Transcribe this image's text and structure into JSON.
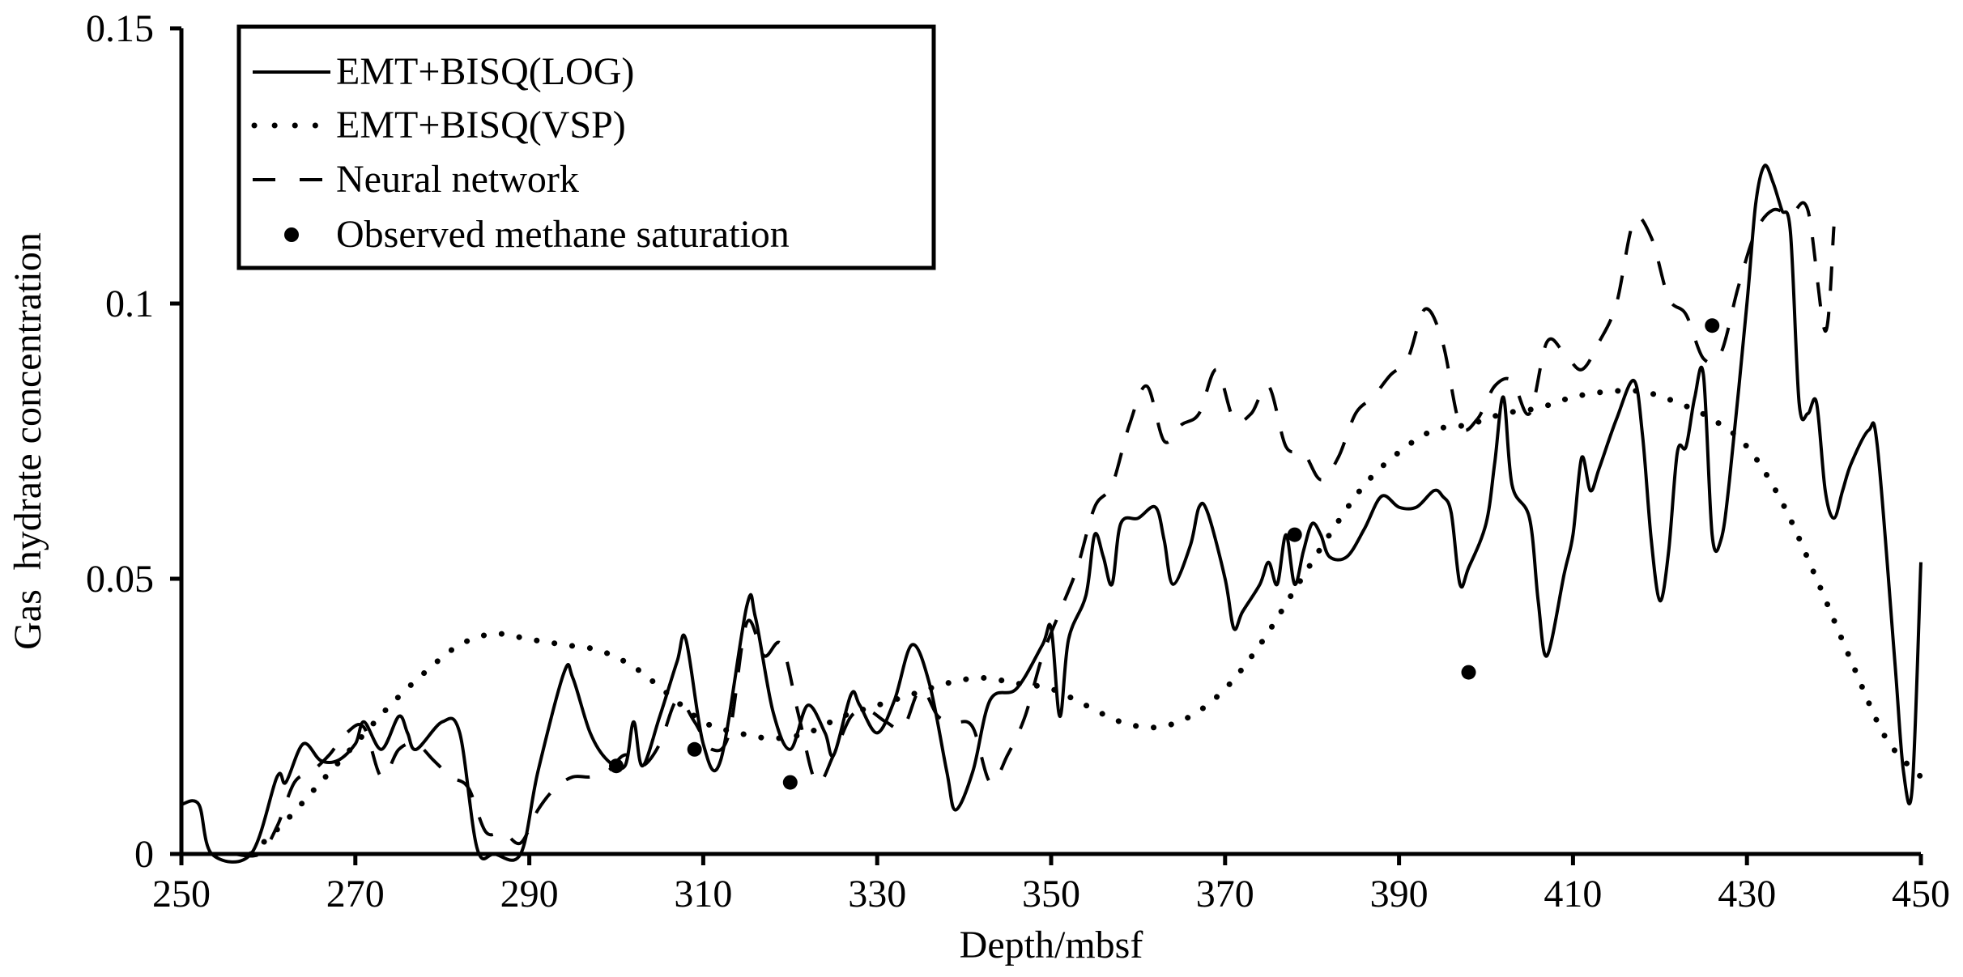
{
  "chart_data": {
    "type": "line",
    "title": "",
    "xlabel": "Depth/mbsf",
    "ylabel": "Gas  hydrate concentration",
    "xlim": [
      250,
      450
    ],
    "ylim": [
      0,
      0.15
    ],
    "xticks": [
      "250",
      "270",
      "290",
      "310",
      "330",
      "350",
      "370",
      "390",
      "410",
      "430",
      "450"
    ],
    "yticks": [
      "0",
      "0.05",
      "0.1",
      "0.15"
    ],
    "grid": false,
    "legend_position": "top-left",
    "series": [
      {
        "name": "EMT+BISQ(LOG)",
        "style": "solid",
        "x": [
          250,
          252,
          253.5,
          258,
          261,
          262,
          264,
          266,
          268,
          270,
          271,
          273,
          275,
          276,
          277,
          280,
          282,
          284,
          286,
          289,
          291,
          294,
          295,
          297,
          299,
          301,
          302,
          303,
          305,
          307,
          308,
          310,
          312,
          315,
          316,
          318,
          320,
          322,
          324,
          325,
          327,
          328,
          330,
          332,
          334,
          336,
          338,
          339,
          341,
          343,
          346,
          349,
          350,
          351,
          352,
          354,
          355,
          356,
          357,
          358,
          360,
          362,
          363,
          364,
          366,
          367,
          368,
          370,
          371,
          372,
          374,
          375,
          376,
          377,
          378,
          379,
          380,
          381,
          382,
          384,
          386,
          388,
          390,
          392,
          394,
          395,
          396,
          397,
          398,
          400,
          401,
          402,
          403,
          405,
          406,
          407,
          409,
          410,
          411,
          412,
          413,
          415,
          417,
          418,
          419,
          420,
          421,
          422,
          423,
          424,
          425,
          426,
          427,
          428,
          430,
          431,
          432,
          433,
          434,
          435,
          436,
          437,
          438,
          439,
          440,
          441,
          442,
          444,
          445,
          447,
          448,
          449,
          450
        ],
        "y": [
          0.009,
          0.009,
          0,
          0,
          0.014,
          0.013,
          0.02,
          0.017,
          0.017,
          0.02,
          0.024,
          0.019,
          0.025,
          0.022,
          0.019,
          0.024,
          0.022,
          0.001,
          0,
          0,
          0.015,
          0.033,
          0.032,
          0.022,
          0.017,
          0.016,
          0.024,
          0.016,
          0.025,
          0.035,
          0.039,
          0.02,
          0.017,
          0.045,
          0.043,
          0.026,
          0.019,
          0.027,
          0.022,
          0.018,
          0.029,
          0.027,
          0.022,
          0.028,
          0.038,
          0.031,
          0.015,
          0.008,
          0.015,
          0.028,
          0.03,
          0.038,
          0.041,
          0.025,
          0.039,
          0.047,
          0.058,
          0.054,
          0.049,
          0.06,
          0.061,
          0.063,
          0.057,
          0.049,
          0.056,
          0.063,
          0.062,
          0.05,
          0.041,
          0.044,
          0.049,
          0.053,
          0.049,
          0.058,
          0.049,
          0.055,
          0.06,
          0.058,
          0.054,
          0.054,
          0.059,
          0.065,
          0.063,
          0.063,
          0.066,
          0.065,
          0.062,
          0.049,
          0.052,
          0.06,
          0.071,
          0.083,
          0.067,
          0.061,
          0.046,
          0.036,
          0.051,
          0.058,
          0.072,
          0.066,
          0.07,
          0.079,
          0.086,
          0.076,
          0.057,
          0.046,
          0.055,
          0.073,
          0.074,
          0.083,
          0.087,
          0.058,
          0.057,
          0.068,
          0.1,
          0.118,
          0.125,
          0.122,
          0.117,
          0.113,
          0.082,
          0.08,
          0.082,
          0.066,
          0.061,
          0.066,
          0.071,
          0.077,
          0.074,
          0.035,
          0.015,
          0.012,
          0.053
        ]
      },
      {
        "name": "EMT+BISQ(VSP)",
        "style": "dotted",
        "x": [
          258,
          262,
          266,
          270,
          274,
          278,
          282,
          286,
          290,
          294,
          298,
          302,
          306,
          310,
          314,
          318,
          322,
          326,
          330,
          334,
          338,
          342,
          346,
          350,
          354,
          358,
          362,
          366,
          370,
          374,
          378,
          382,
          386,
          390,
          394,
          398,
          402,
          406,
          410,
          414,
          418,
          422,
          426,
          430,
          434,
          438,
          442,
          446,
          450
        ],
        "y": [
          0,
          0.006,
          0.013,
          0.02,
          0.027,
          0.033,
          0.038,
          0.04,
          0.039,
          0.038,
          0.037,
          0.034,
          0.029,
          0.024,
          0.022,
          0.021,
          0.022,
          0.025,
          0.027,
          0.029,
          0.031,
          0.032,
          0.031,
          0.03,
          0.027,
          0.024,
          0.023,
          0.025,
          0.03,
          0.038,
          0.048,
          0.058,
          0.067,
          0.073,
          0.077,
          0.078,
          0.08,
          0.081,
          0.083,
          0.084,
          0.084,
          0.082,
          0.079,
          0.074,
          0.064,
          0.05,
          0.035,
          0.021,
          0.014
        ]
      },
      {
        "name": "Neural network",
        "style": "dashed",
        "x": [
          256,
          259,
          261,
          263,
          265,
          267,
          269,
          271,
          273,
          275,
          277,
          279,
          281,
          283,
          285,
          287,
          289,
          291,
          293,
          295,
          297,
          299,
          301,
          303,
          305,
          307,
          309,
          311,
          313,
          315,
          317,
          319,
          321,
          323,
          325,
          327,
          329,
          331,
          333,
          335,
          337,
          339,
          341,
          343,
          345,
          347,
          349,
          351,
          353,
          355,
          357,
          359,
          361,
          363,
          365,
          367,
          369,
          371,
          373,
          375,
          377,
          379,
          381,
          383,
          385,
          387,
          389,
          391,
          393,
          395,
          397,
          399,
          401,
          403,
          405,
          407,
          409,
          411,
          413,
          415,
          417,
          419,
          421,
          423,
          425,
          427,
          429,
          431,
          433,
          435,
          437,
          439,
          440
        ],
        "y": [
          0,
          0,
          0.005,
          0.013,
          0.015,
          0.018,
          0.022,
          0.023,
          0.014,
          0.019,
          0.02,
          0.017,
          0.014,
          0.012,
          0.004,
          0.004,
          0.002,
          0.008,
          0.012,
          0.014,
          0.014,
          0.015,
          0.018,
          0.016,
          0.02,
          0.028,
          0.024,
          0.019,
          0.022,
          0.042,
          0.036,
          0.038,
          0.025,
          0.013,
          0.018,
          0.025,
          0.026,
          0.024,
          0.023,
          0.03,
          0.025,
          0.024,
          0.023,
          0.013,
          0.018,
          0.025,
          0.036,
          0.044,
          0.052,
          0.063,
          0.067,
          0.078,
          0.085,
          0.075,
          0.078,
          0.08,
          0.088,
          0.079,
          0.08,
          0.085,
          0.074,
          0.073,
          0.068,
          0.072,
          0.08,
          0.083,
          0.087,
          0.09,
          0.099,
          0.093,
          0.078,
          0.079,
          0.085,
          0.086,
          0.08,
          0.093,
          0.091,
          0.088,
          0.093,
          0.1,
          0.115,
          0.112,
          0.101,
          0.098,
          0.09,
          0.091,
          0.103,
          0.113,
          0.117,
          0.116,
          0.117,
          0.095,
          0.114
        ]
      }
    ],
    "points": {
      "name": "Observed methane saturation",
      "x": [
        300,
        309,
        320,
        378,
        398,
        426
      ],
      "y": [
        0.016,
        0.019,
        0.013,
        0.058,
        0.033,
        0.096
      ]
    },
    "legend": [
      "EMT+BISQ(LOG)",
      "EMT+BISQ(VSP)",
      "Neural network",
      "Observed methane saturation"
    ],
    "colors": {
      "line": "#000000",
      "background": "#ffffff"
    }
  }
}
